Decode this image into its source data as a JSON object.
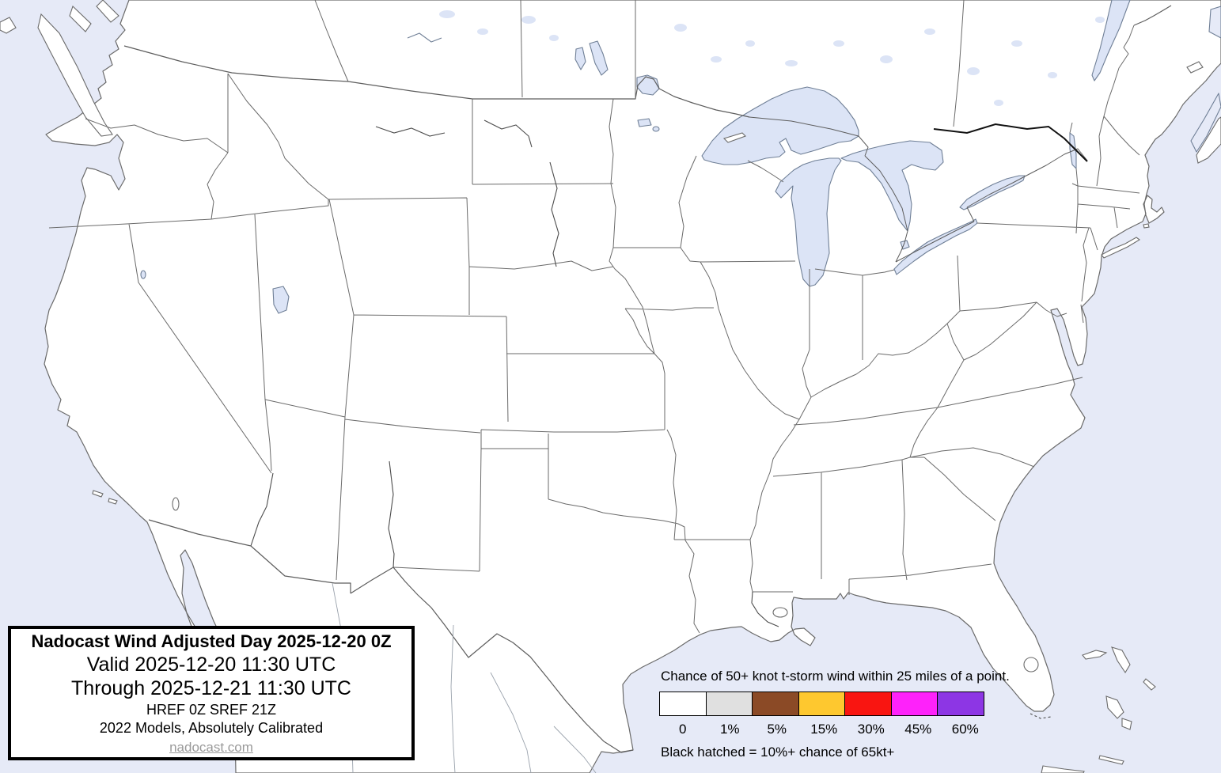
{
  "info_box": {
    "title": "Nadocast Wind Adjusted Day 2025-12-20 0Z",
    "valid": "Valid 2025-12-20 11:30 UTC",
    "through": "Through 2025-12-21 11:30 UTC",
    "models": "HREF 0Z SREF 21Z",
    "calibration": "2022 Models, Absolutely Calibrated",
    "link": "nadocast.com"
  },
  "legend": {
    "title": "Chance of 50+ knot t-storm wind within 25 miles of a point.",
    "swatches": [
      {
        "label": "0",
        "color": "#ffffff"
      },
      {
        "label": "1%",
        "color": "#e0e0e0"
      },
      {
        "label": "5%",
        "color": "#8b4a26"
      },
      {
        "label": "15%",
        "color": "#fec82f"
      },
      {
        "label": "30%",
        "color": "#f91511"
      },
      {
        "label": "45%",
        "color": "#fe22fa"
      },
      {
        "label": "60%",
        "color": "#8d36e4"
      }
    ],
    "note": "Black hatched = 10%+ chance of 65kt+"
  },
  "colors": {
    "ocean": "#e6eaf7",
    "land": "#ffffff",
    "lake": "#dce4f6",
    "state_border": "#6a6a6a",
    "river": "#4c4c4c",
    "national_border_dark": "#111111"
  }
}
